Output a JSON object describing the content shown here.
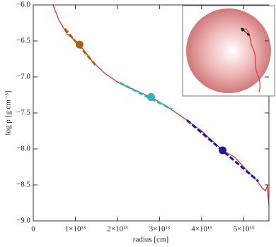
{
  "chart_data": {
    "type": "line",
    "x_label": "radius [cm]",
    "y_label": "log ρ [g cm⁻³]",
    "xlim": [
      0,
      56000000000000.0
    ],
    "ylim": [
      -9.0,
      -6.0
    ],
    "xticks": [
      0,
      {
        "value": 10000000000000.0,
        "label": "1×10¹³"
      },
      {
        "value": 20000000000000.0,
        "label": "2×10¹³"
      },
      {
        "value": 30000000000000.0,
        "label": "3×10¹³"
      },
      {
        "value": 40000000000000.0,
        "label": "4×10¹³"
      },
      {
        "value": 50000000000000.0,
        "label": "5×10¹³"
      }
    ],
    "yticks": [
      {
        "value": -6.0,
        "label": "−6.0"
      },
      {
        "value": -6.5,
        "label": "−6.5"
      },
      {
        "value": -7.0,
        "label": "−7.0"
      },
      {
        "value": -7.5,
        "label": "−7.5"
      },
      {
        "value": -8.0,
        "label": "−8.0"
      },
      {
        "value": -8.5,
        "label": "−8.5"
      },
      {
        "value": -9.0,
        "label": "−9.0"
      }
    ],
    "series": [
      {
        "color": "#e8302a",
        "style": "solid",
        "x": [
          4700000000000.0,
          6000000000000.0,
          8000000000000.0,
          11000000000000.0,
          14000000000000.0,
          17000000000000.0,
          20000000000000.0,
          24000000000000.0,
          28000000000000.0,
          32000000000000.0,
          36000000000000.0,
          40000000000000.0,
          45000000000000.0,
          48000000000000.0,
          50000000000000.0,
          53000000000000.0,
          54500000000000.0,
          55200000000000.0,
          55700000000000.0,
          55800000000000.0,
          56000000000000.0
        ],
        "values": [
          -6.0,
          -6.2,
          -6.4,
          -6.55,
          -6.78,
          -6.95,
          -7.07,
          -7.18,
          -7.28,
          -7.42,
          -7.58,
          -7.75,
          -8.02,
          -8.12,
          -8.25,
          -8.43,
          -8.55,
          -8.58,
          -8.5,
          -8.65,
          -8.78
        ]
      },
      {
        "color": "#b0600f",
        "style": "dashed",
        "x": [
          7500000000000.0,
          15000000000000.0
        ],
        "values": [
          -6.33,
          -6.85
        ]
      },
      {
        "color": "#2bb5b8",
        "style": "dashed",
        "x": [
          20500000000000.0,
          33000000000000.0
        ],
        "values": [
          -7.08,
          -7.45
        ]
      },
      {
        "color": "#1a1aa0",
        "style": "dashed",
        "x": [
          36500000000000.0,
          53500000000000.0
        ],
        "values": [
          -7.6,
          -8.45
        ]
      },
      {
        "color": "#b0600f",
        "style": "marker",
        "x": [
          11000000000000.0
        ],
        "values": [
          -6.55
        ]
      },
      {
        "color": "#2bb5b8",
        "style": "marker",
        "x": [
          28000000000000.0
        ],
        "values": [
          -7.28
        ]
      },
      {
        "color": "#1a1aa0",
        "style": "marker",
        "x": [
          45000000000000.0
        ],
        "values": [
          -8.02
        ]
      }
    ]
  }
}
